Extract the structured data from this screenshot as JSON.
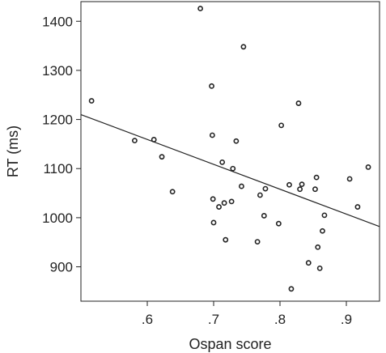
{
  "chart_data": {
    "type": "scatter",
    "title": "",
    "xlabel": "Ospan score",
    "ylabel": "RT (ms)",
    "xlim": [
      0.5,
      0.95
    ],
    "ylim": [
      830,
      1440
    ],
    "x_ticks": [
      0.6,
      0.7,
      0.8,
      0.9
    ],
    "x_tick_labels": [
      ".6",
      ".7",
      ".8",
      ".9"
    ],
    "y_ticks": [
      900,
      1000,
      1100,
      1200,
      1300,
      1400
    ],
    "y_tick_labels": [
      "900",
      "1000",
      "1100",
      "1200",
      "1300",
      "1400"
    ],
    "grid": false,
    "legend": "none",
    "marker": "open-circle",
    "colors": {
      "points": "#222222",
      "line": "#222222",
      "axes": "#222222"
    },
    "trend_line": {
      "x": [
        0.5,
        0.95
      ],
      "y": [
        1210,
        982
      ]
    },
    "points": [
      [
        0.516,
        1238
      ],
      [
        0.581,
        1157
      ],
      [
        0.61,
        1159
      ],
      [
        0.622,
        1124
      ],
      [
        0.638,
        1053
      ],
      [
        0.68,
        1426
      ],
      [
        0.697,
        1268
      ],
      [
        0.698,
        1168
      ],
      [
        0.699,
        1038
      ],
      [
        0.7,
        990
      ],
      [
        0.708,
        1022
      ],
      [
        0.713,
        1113
      ],
      [
        0.716,
        1030
      ],
      [
        0.718,
        955
      ],
      [
        0.727,
        1033
      ],
      [
        0.729,
        1100
      ],
      [
        0.734,
        1156
      ],
      [
        0.742,
        1064
      ],
      [
        0.745,
        1348
      ],
      [
        0.766,
        951
      ],
      [
        0.77,
        1046
      ],
      [
        0.776,
        1004
      ],
      [
        0.778,
        1059
      ],
      [
        0.798,
        988
      ],
      [
        0.802,
        1188
      ],
      [
        0.814,
        1067
      ],
      [
        0.817,
        855
      ],
      [
        0.828,
        1233
      ],
      [
        0.83,
        1058
      ],
      [
        0.833,
        1068
      ],
      [
        0.843,
        908
      ],
      [
        0.853,
        1058
      ],
      [
        0.855,
        1082
      ],
      [
        0.857,
        940
      ],
      [
        0.86,
        897
      ],
      [
        0.864,
        973
      ],
      [
        0.867,
        1005
      ],
      [
        0.905,
        1079
      ],
      [
        0.917,
        1022
      ],
      [
        0.933,
        1103
      ]
    ]
  }
}
